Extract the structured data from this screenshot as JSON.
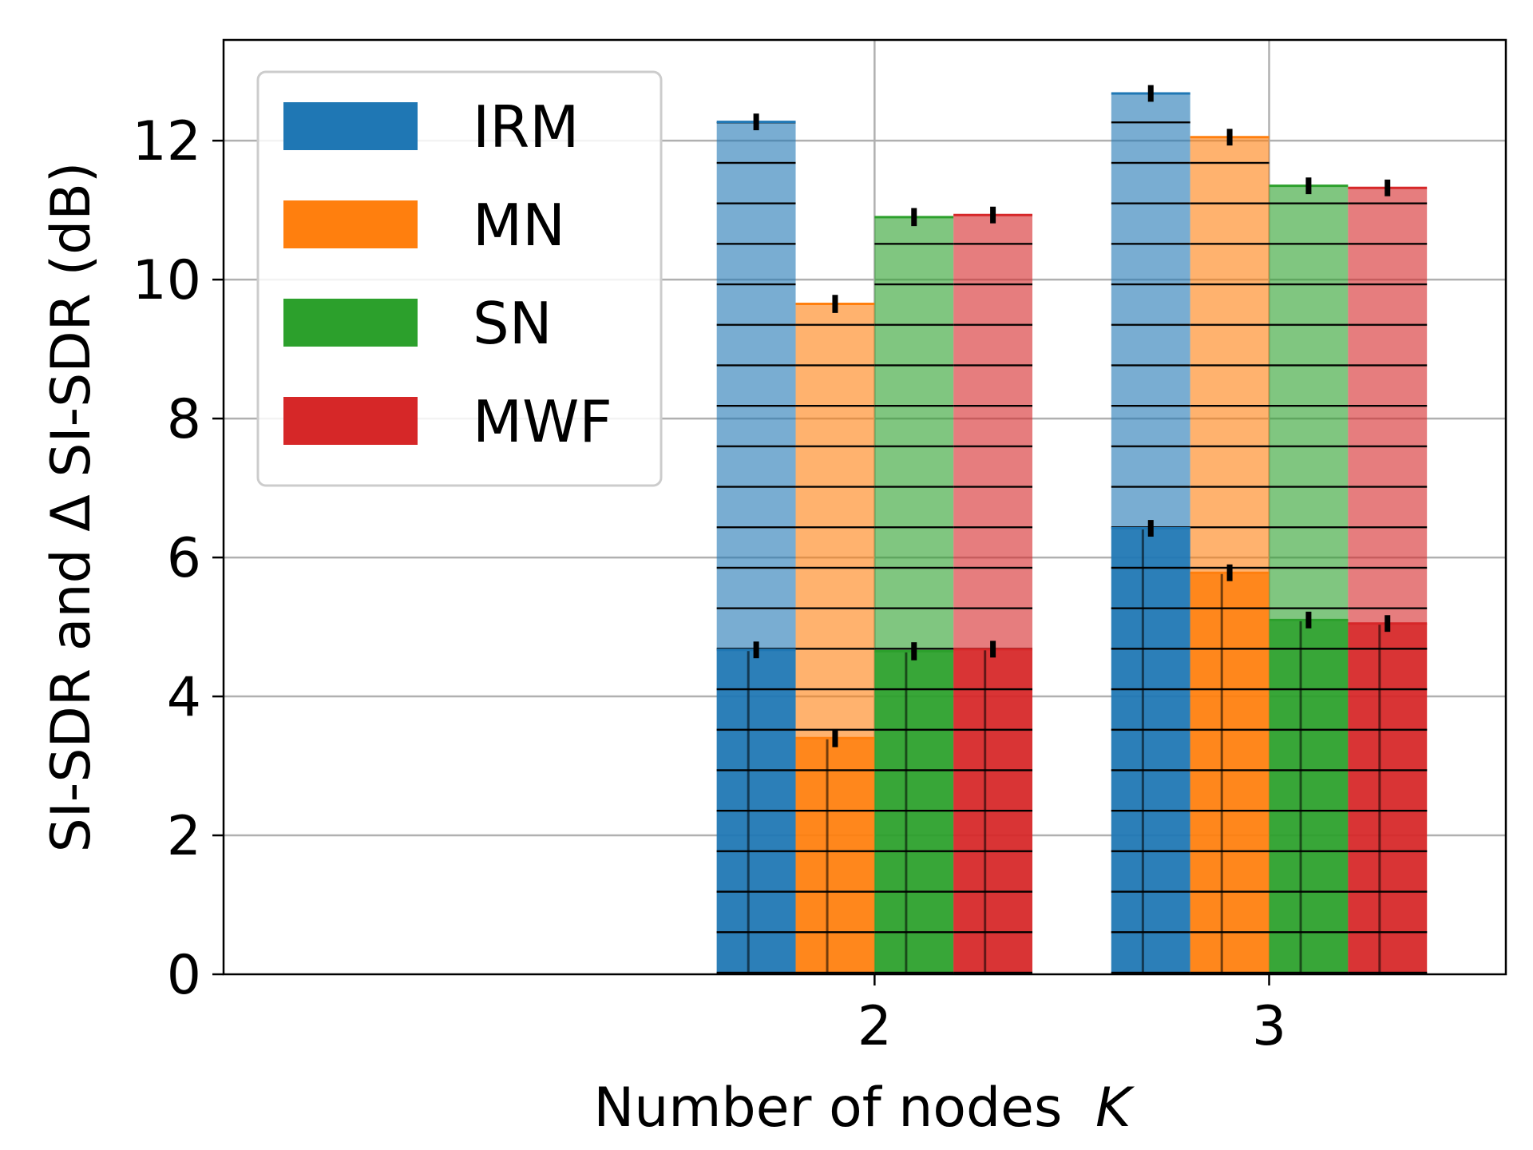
{
  "chart_data": {
    "type": "bar",
    "xlabel": "Number of nodes",
    "xlabel_var": "K",
    "ylabel": "SI-SDR and Δ SI-SDR (dB)",
    "categories": [
      "2",
      "3"
    ],
    "x_tick_labels": [
      "2",
      "3"
    ],
    "y_ticks": [
      0,
      2,
      4,
      6,
      8,
      10,
      12
    ],
    "ylim": [
      0,
      13.45
    ],
    "grid": true,
    "legend_position": "top-left",
    "layers": [
      {
        "layer": "SI-SDR (total, light)",
        "hatch": "horizontal lines"
      },
      {
        "layer": "Δ SI-SDR (front, dark)",
        "hatch": "grid"
      }
    ],
    "series": [
      {
        "name": "IRM",
        "color": "#1f77b4",
        "light_values": [
          12.27,
          12.68
        ],
        "light_err": [
          0.12,
          0.12
        ],
        "dark_values": [
          4.67,
          6.42
        ],
        "dark_err": [
          0.12,
          0.12
        ]
      },
      {
        "name": "MN",
        "color": "#ff7f0e",
        "light_values": [
          9.65,
          12.05
        ],
        "light_err": [
          0.13,
          0.12
        ],
        "dark_values": [
          3.4,
          5.78
        ],
        "dark_err": [
          0.13,
          0.12
        ]
      },
      {
        "name": "SN",
        "color": "#2ca02c",
        "light_values": [
          10.9,
          11.35
        ],
        "light_err": [
          0.13,
          0.12
        ],
        "dark_values": [
          4.65,
          5.1
        ],
        "dark_err": [
          0.13,
          0.12
        ]
      },
      {
        "name": "MWF",
        "color": "#d62728",
        "light_values": [
          10.93,
          11.32
        ],
        "light_err": [
          0.12,
          0.12
        ],
        "dark_values": [
          4.68,
          5.05
        ],
        "dark_err": [
          0.12,
          0.12
        ]
      }
    ]
  }
}
